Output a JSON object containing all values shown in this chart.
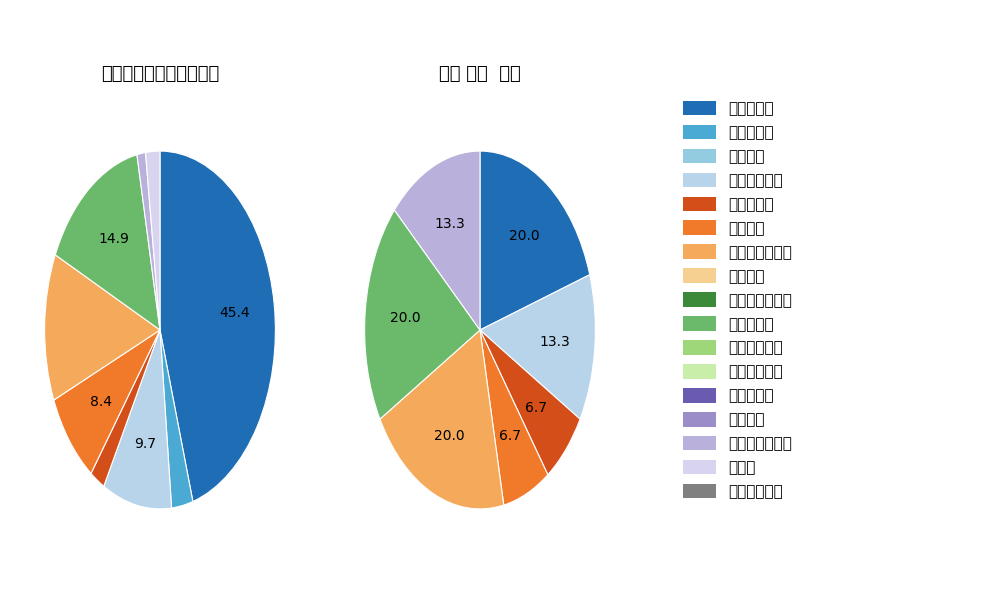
{
  "pitch_types": [
    "ストレート",
    "ツーシーム",
    "シュート",
    "カットボール",
    "スプリット",
    "フォーク",
    "チェンジアップ",
    "シンカー",
    "高速スライダー",
    "スライダー",
    "縦スライダー",
    "パワーカーブ",
    "スクリュー",
    "ナックル",
    "ナックルカーブ",
    "カーブ",
    "スローカーブ"
  ],
  "colors": [
    "#1e6db5",
    "#4baad4",
    "#93cce0",
    "#b8d4eb",
    "#d44e1a",
    "#f07a2a",
    "#f5a95a",
    "#f5d090",
    "#3a8a3a",
    "#6bba6b",
    "#9ed67a",
    "#c8eeaa",
    "#6a5ab0",
    "#9b8ec8",
    "#bab0dc",
    "#d8d4f0",
    "#808080"
  ],
  "left_pie": {
    "title": "セ・リーグ全プレイヤー",
    "values": [
      45.4,
      3.0,
      0.0,
      9.7,
      2.1,
      8.4,
      13.3,
      0.0,
      0.0,
      14.9,
      0.0,
      0.0,
      0.0,
      0.0,
      1.2,
      2.0,
      0.0
    ],
    "show_pct": [
      true,
      false,
      false,
      true,
      false,
      true,
      false,
      false,
      false,
      true,
      false,
      false,
      false,
      false,
      false,
      false,
      false
    ]
  },
  "right_pie": {
    "title": "若林 楽人  選手",
    "values": [
      20.0,
      0.0,
      0.0,
      13.3,
      6.7,
      6.7,
      20.0,
      0.0,
      0.0,
      20.0,
      0.0,
      0.0,
      0.0,
      0.0,
      13.3,
      0.0,
      0.0
    ],
    "show_pct": [
      true,
      false,
      false,
      true,
      true,
      true,
      true,
      false,
      false,
      true,
      false,
      false,
      false,
      false,
      true,
      false,
      false
    ]
  },
  "background_color": "#ffffff",
  "title_fontsize": 13,
  "label_fontsize": 10,
  "legend_fontsize": 11
}
